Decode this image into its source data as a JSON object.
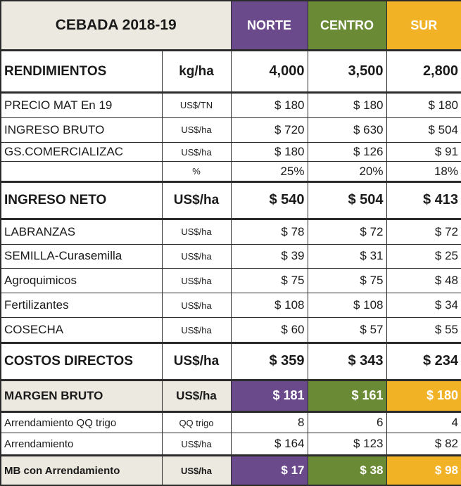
{
  "header": {
    "title": "CEBADA 2018-19",
    "regions": [
      "NORTE",
      "CENTRO",
      "SUR"
    ]
  },
  "colors": {
    "norte": "#6a4a8a",
    "centro": "#6b8a35",
    "sur": "#f2b225",
    "label_bg": "#ece9e0"
  },
  "rows": {
    "rendimientos": {
      "label": "RENDIMIENTOS",
      "unit": "kg/ha",
      "values": [
        "4,000",
        "3,500",
        "2,800"
      ]
    },
    "precio": {
      "label": "PRECIO  MAT En 19",
      "unit": "US$/TN",
      "values": [
        "$ 180",
        "$ 180",
        "$ 180"
      ]
    },
    "ingreso_bruto": {
      "label": "INGRESO BRUTO",
      "unit": "US$/ha",
      "values": [
        "$ 720",
        "$ 630",
        "$ 504"
      ]
    },
    "gs_comercializac": {
      "label": "GS.COMERCIALIZAC",
      "unit": "US$/ha",
      "values": [
        "$ 180",
        "$ 126",
        "$ 91"
      ]
    },
    "gs_pct": {
      "label": "",
      "unit": "%",
      "values": [
        "25%",
        "20%",
        "18%"
      ]
    },
    "ingreso_neto": {
      "label": "INGRESO NETO",
      "unit": "US$/ha",
      "values": [
        "$ 540",
        "$ 504",
        "$ 413"
      ]
    },
    "labranzas": {
      "label": "LABRANZAS",
      "unit": "US$/ha",
      "values": [
        "$ 78",
        "$ 72",
        "$ 72"
      ]
    },
    "semilla": {
      "label": "SEMILLA-Curasemilla",
      "unit": "US$/ha",
      "values": [
        "$ 39",
        "$ 31",
        "$ 25"
      ]
    },
    "agroquimicos": {
      "label": "Agroquimicos",
      "unit": "US$/ha",
      "values": [
        "$ 75",
        "$ 75",
        "$ 48"
      ]
    },
    "fertilizantes": {
      "label": "Fertilizantes",
      "unit": "US$/ha",
      "values": [
        "$ 108",
        "$ 108",
        "$ 34"
      ]
    },
    "cosecha": {
      "label": "COSECHA",
      "unit": "US$/ha",
      "values": [
        "$ 60",
        "$ 57",
        "$ 55"
      ]
    },
    "costos_directos": {
      "label": "COSTOS DIRECTOS",
      "unit": "US$/ha",
      "values": [
        "$ 359",
        "$ 343",
        "$ 234"
      ]
    },
    "margen_bruto": {
      "label": "MARGEN BRUTO",
      "unit": "US$/ha",
      "values": [
        "$ 181",
        "$ 161",
        "$ 180"
      ]
    },
    "arrend_qq": {
      "label": "Arrendamiento QQ trigo",
      "unit": "QQ trigo",
      "values": [
        "8",
        "6",
        "4"
      ]
    },
    "arrendamiento": {
      "label": "Arrendamiento",
      "unit": "US$/ha",
      "values": [
        "$ 164",
        "$ 123",
        "$ 82"
      ]
    },
    "mb_arrend": {
      "label": "MB con Arrendamiento",
      "unit": "US$/ha",
      "values": [
        "$ 17",
        "$ 38",
        "$ 98"
      ]
    }
  }
}
